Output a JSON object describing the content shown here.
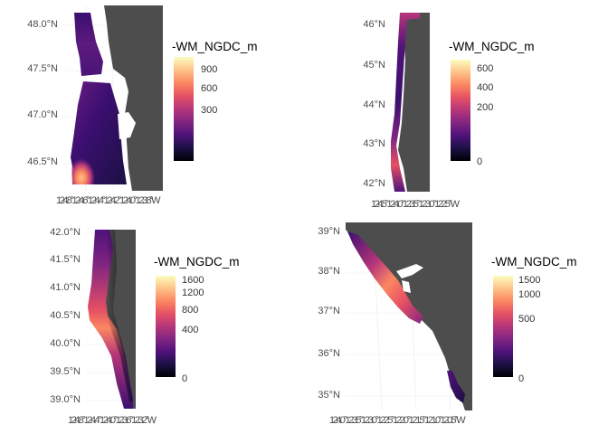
{
  "gradient": [
    "#000004",
    "#1c1044",
    "#4f127b",
    "#812581",
    "#b5367a",
    "#e55064",
    "#fb8761",
    "#fec287",
    "#fcfdbf"
  ],
  "land_color": "#4d4d4d",
  "panels": [
    {
      "id": "p1",
      "yticks": [
        "48.0°N",
        "47.5°N",
        "47.0°N",
        "46.5°N"
      ],
      "xticks": "124.8°124.6°124.4°124.2°124.0°123.8°W",
      "legend_title": "-WM_NGDC_m",
      "legend_ticks": [
        "900",
        "600",
        "300"
      ],
      "legend_max": 1000
    },
    {
      "id": "p2",
      "yticks": [
        "46°N",
        "45°N",
        "44°N",
        "43°N",
        "42°N"
      ],
      "xticks": "124.5°124.0°123.5°123.0°122.5°W",
      "legend_title": "-WM_NGDC_m",
      "legend_ticks": [
        "600",
        "400",
        "200",
        "0"
      ],
      "legend_max": 700
    },
    {
      "id": "p3",
      "yticks": [
        "42.0°N",
        "41.5°N",
        "41.0°N",
        "40.5°N",
        "40.0°N",
        "39.5°N",
        "39.0°N"
      ],
      "xticks": "124.8°124.4°124.0°123.6°123.2°W",
      "legend_title": "-WM_NGDC_m",
      "legend_ticks": [
        "1600",
        "1200",
        "800",
        "400",
        "0"
      ],
      "legend_max": 1700
    },
    {
      "id": "p4",
      "yticks": [
        "39°N",
        "38°N",
        "37°N",
        "36°N",
        "35°N"
      ],
      "xticks": "124.0°123.5°123.0°122.5°122.0°121.5°121.0°120.5°W",
      "legend_title": "-WM_NGDC_m",
      "legend_ticks": [
        "1500",
        "1000",
        "500",
        "0"
      ],
      "legend_max": 1600
    }
  ]
}
